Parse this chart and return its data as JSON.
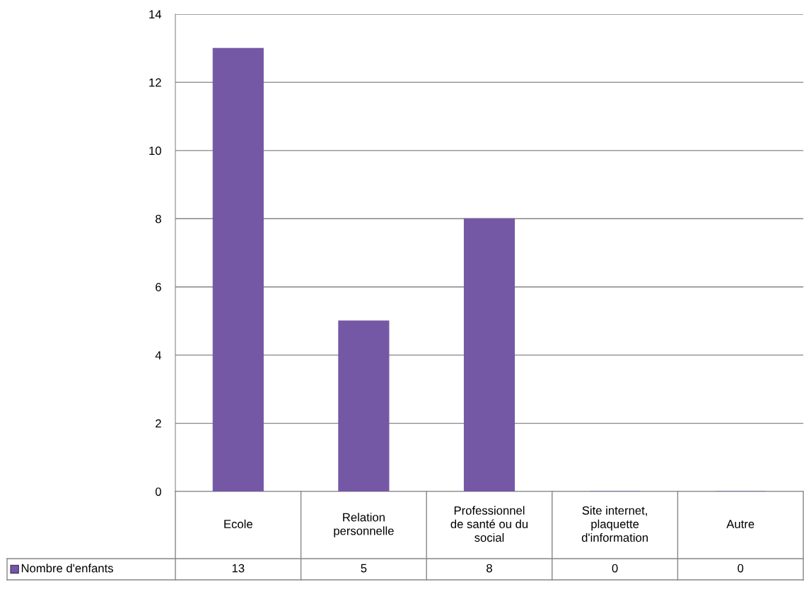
{
  "chart_data": {
    "type": "bar",
    "categories": [
      "Ecole",
      "Relation personnelle",
      "Professionnel de santé ou du social",
      "Site internet, plaquette d'information",
      "Autre"
    ],
    "series": [
      {
        "name": "Nombre d'enfants",
        "color": "#7458a5",
        "values": [
          13,
          5,
          8,
          0,
          0
        ]
      }
    ],
    "ylim": [
      0,
      14
    ],
    "yticks": [
      0,
      2,
      4,
      6,
      8,
      10,
      12,
      14
    ],
    "grid": "y",
    "data_labels": true,
    "legend": "bottom"
  }
}
